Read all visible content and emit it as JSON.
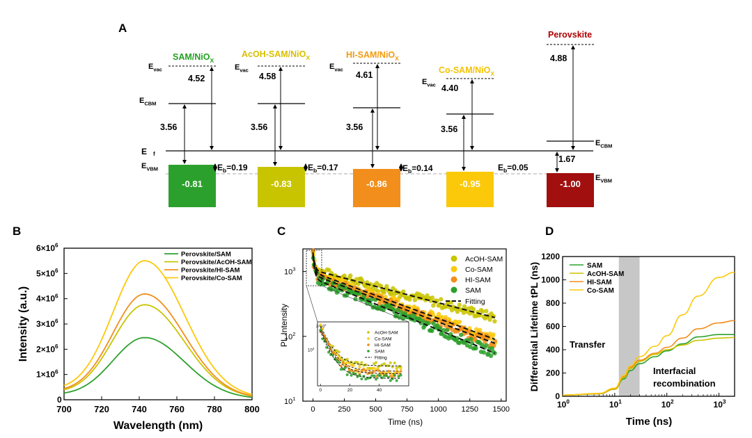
{
  "colors": {
    "SAM": "#2ca02c",
    "AcOH-SAM": "#c9c400",
    "HI-SAM": "#f28e1c",
    "Co-SAM": "#fbc90a",
    "Perovskite": "#a10f0f",
    "label_sam": "#22a022",
    "label_acoh": "#d8c000",
    "label_hi": "#f29a10",
    "label_co": "#f4c200",
    "label_pvk": "#b00000"
  },
  "chart_data": [
    {
      "panel": "A",
      "type": "energy-level-diagram",
      "panel_label": "A",
      "level_labels": {
        "vac": "E",
        "vac_sub": "vac",
        "cbm": "E",
        "cbm_sub": "CBM",
        "f": "E",
        "vbm": "E",
        "vbm_sub": "VBM",
        "eb": "E",
        "eb_sub": "b"
      },
      "materials": [
        {
          "name_main": "SAM/NiO",
          "name_sub": "X",
          "series": "SAM",
          "work_function": "4.52",
          "gap": "3.56",
          "vbm": "-0.81",
          "eb_after": "=0.19"
        },
        {
          "name_main": "AcOH-SAM/NiO",
          "name_sub": "X",
          "series": "AcOH-SAM",
          "work_function": "4.58",
          "gap": "3.56",
          "vbm": "-0.83",
          "eb_after": "=0.17"
        },
        {
          "name_main": "HI-SAM/NiO",
          "name_sub": "X",
          "series": "HI-SAM",
          "work_function": "4.61",
          "gap": "3.56",
          "vbm": "-0.86",
          "eb_after": "=0.14"
        },
        {
          "name_main": "Co-SAM/NiO",
          "name_sub": "X",
          "series": "Co-SAM",
          "work_function": "4.40",
          "gap": "3.56",
          "vbm": "-0.95",
          "eb_after": "=0.05"
        },
        {
          "name_main": "Perovskite",
          "name_sub": "",
          "series": "Perovskite",
          "work_function": "4.88",
          "gap": "1.67",
          "vbm": "-1.00",
          "eb_after": ""
        }
      ]
    },
    {
      "panel": "B",
      "type": "line",
      "panel_label": "B",
      "title": "",
      "xlabel": "Wavelength (nm)",
      "ylabel": "Intensity (a.u.)",
      "xlim": [
        700,
        800
      ],
      "ylim": [
        0,
        6000000
      ],
      "xticks": [
        700,
        720,
        740,
        760,
        780,
        800
      ],
      "yticks": [
        {
          "value": 0,
          "base": "0",
          "exp": ""
        },
        {
          "value": 1000000,
          "base": "1×10",
          "exp": "6"
        },
        {
          "value": 2000000,
          "base": "2×10",
          "exp": "6"
        },
        {
          "value": 3000000,
          "base": "3×10",
          "exp": "6"
        },
        {
          "value": 4000000,
          "base": "4×10",
          "exp": "6"
        },
        {
          "value": 5000000,
          "base": "5×10",
          "exp": "6"
        },
        {
          "value": 6000000,
          "base": "6×10",
          "exp": "6"
        }
      ],
      "legend_position": "top-right",
      "series": [
        {
          "name": "Perovskite/SAM",
          "key": "SAM",
          "peak_nm": 743,
          "peak": 2420000,
          "baseline700": 170000,
          "baseline800": 80000
        },
        {
          "name": "Perovskite/AcOH-SAM",
          "key": "AcOH-SAM",
          "peak_nm": 743,
          "peak": 3700000,
          "baseline700": 250000,
          "baseline800": 120000
        },
        {
          "name": "Perovskite/HI-SAM",
          "key": "HI-SAM",
          "peak_nm": 743,
          "peak": 4120000,
          "baseline700": 280000,
          "baseline800": 130000
        },
        {
          "name": "Perovskite/Co-SAM",
          "key": "Co-SAM",
          "peak_nm": 743,
          "peak": 5420000,
          "baseline700": 350000,
          "baseline800": 160000
        }
      ]
    },
    {
      "panel": "C",
      "type": "scatter",
      "panel_label": "C",
      "xlabel": "Time (ns)",
      "ylabel": "PL Intensity",
      "xlim": [
        -80,
        1540
      ],
      "ylim_log10": [
        1,
        3.35
      ],
      "xticks": [
        0,
        250,
        500,
        750,
        1000,
        1250,
        1500
      ],
      "yticks": [
        {
          "value": 10,
          "base": "10",
          "exp": "1"
        },
        {
          "value": 100,
          "base": "10",
          "exp": "2"
        },
        {
          "value": 1000,
          "base": "10",
          "exp": "3"
        }
      ],
      "legend_position": "top-right",
      "series": [
        {
          "name": "AcOH-SAM",
          "key": "AcOH-SAM",
          "start": 2000,
          "at50": 1000,
          "end": 195,
          "end_t": 1450
        },
        {
          "name": "Co-SAM",
          "key": "Co-SAM",
          "start": 1900,
          "at50": 900,
          "end": 90,
          "end_t": 1450
        },
        {
          "name": "HI-SAM",
          "key": "HI-SAM",
          "start": 1800,
          "at50": 820,
          "end": 78,
          "end_t": 1450
        },
        {
          "name": "SAM",
          "key": "SAM",
          "start": 1700,
          "at50": 720,
          "end": 55,
          "end_t": 1450
        }
      ],
      "fit_label": "Fitting",
      "inset": {
        "xticks": [
          0,
          20,
          40
        ],
        "ytick_top": {
          "base": "2×10",
          "exp": "3"
        },
        "ytick_mid": {
          "base": "10",
          "exp": "3"
        },
        "legend": [
          "AcOH-SAM",
          "Co-SAM",
          "HI-SAM",
          "SAM",
          "Fitting"
        ]
      }
    },
    {
      "panel": "D",
      "type": "line",
      "panel_label": "D",
      "xlabel": "Time (ns)",
      "ylabel": "Differential Lifetime tPL (ns)",
      "xlim_log10": [
        0,
        3.3
      ],
      "ylim": [
        0,
        1200
      ],
      "xticks": [
        {
          "value": 1,
          "base": "10",
          "exp": "0"
        },
        {
          "value": 10,
          "base": "10",
          "exp": "1"
        },
        {
          "value": 100,
          "base": "10",
          "exp": "2"
        },
        {
          "value": 1000,
          "base": "10",
          "exp": "3"
        }
      ],
      "yticks": [
        0,
        200,
        400,
        600,
        800,
        1000,
        1200
      ],
      "legend_position": "top-left",
      "shaded_region_ns": [
        12,
        30
      ],
      "annotations": [
        "Transfer",
        "Interfacial",
        "recombination"
      ],
      "series": [
        {
          "name": "SAM",
          "key": "SAM",
          "points": [
            [
              1,
              10
            ],
            [
              5,
              20
            ],
            [
              10,
              60
            ],
            [
              15,
              150
            ],
            [
              20,
              220
            ],
            [
              30,
              280
            ],
            [
              60,
              340
            ],
            [
              100,
              390
            ],
            [
              200,
              450
            ],
            [
              400,
              510
            ],
            [
              1000,
              530
            ],
            [
              2000,
              530
            ]
          ]
        },
        {
          "name": "AcOH-SAM",
          "key": "AcOH-SAM",
          "points": [
            [
              1,
              10
            ],
            [
              5,
              22
            ],
            [
              10,
              60
            ],
            [
              15,
              160
            ],
            [
              20,
              240
            ],
            [
              30,
              300
            ],
            [
              60,
              360
            ],
            [
              100,
              400
            ],
            [
              200,
              440
            ],
            [
              400,
              480
            ],
            [
              1000,
              500
            ],
            [
              2000,
              505
            ]
          ]
        },
        {
          "name": "HI-SAM",
          "key": "HI-SAM",
          "points": [
            [
              1,
              10
            ],
            [
              5,
              22
            ],
            [
              10,
              65
            ],
            [
              15,
              170
            ],
            [
              20,
              250
            ],
            [
              30,
              310
            ],
            [
              60,
              370
            ],
            [
              100,
              420
            ],
            [
              200,
              500
            ],
            [
              400,
              580
            ],
            [
              1000,
              630
            ],
            [
              2000,
              650
            ]
          ]
        },
        {
          "name": "Co-SAM",
          "key": "Co-SAM",
          "points": [
            [
              1,
              10
            ],
            [
              5,
              25
            ],
            [
              10,
              70
            ],
            [
              15,
              180
            ],
            [
              20,
              260
            ],
            [
              30,
              340
            ],
            [
              60,
              430
            ],
            [
              100,
              520
            ],
            [
              200,
              700
            ],
            [
              400,
              860
            ],
            [
              1000,
              1020
            ],
            [
              2000,
              1065
            ]
          ]
        }
      ]
    }
  ]
}
